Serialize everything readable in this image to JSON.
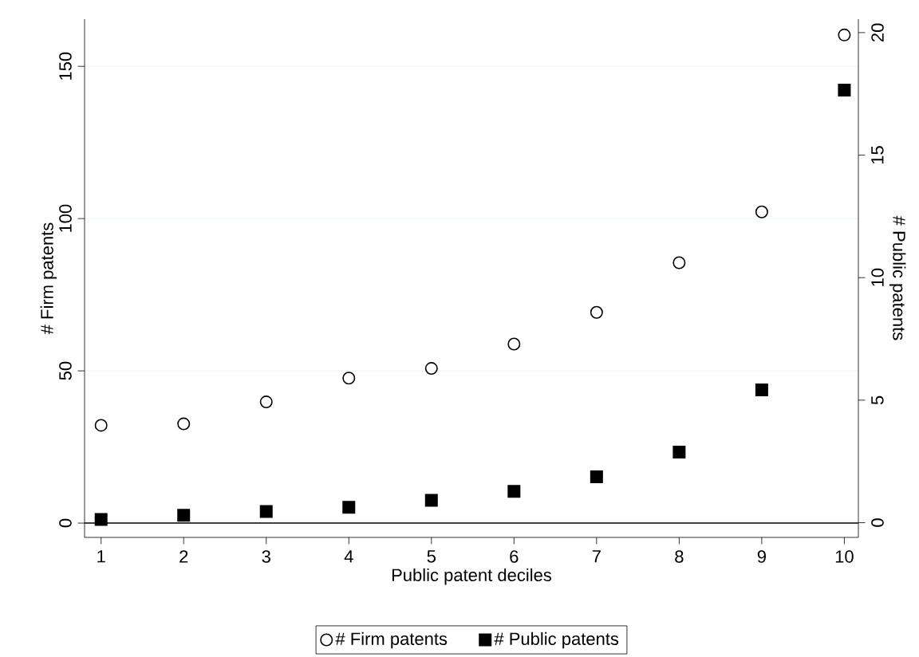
{
  "chart_data": {
    "type": "scatter",
    "xlabel": "Public patent deciles",
    "ylabel": "# Firm patents",
    "y2label": "# Public patents",
    "x": [
      1,
      2,
      3,
      4,
      5,
      6,
      7,
      8,
      9,
      10
    ],
    "xlim": [
      0.8,
      10.17
    ],
    "xticks": [
      1,
      2,
      3,
      4,
      5,
      6,
      7,
      8,
      9,
      10
    ],
    "ylim": [
      -4.7,
      165.5
    ],
    "yticks": [
      0,
      50,
      100,
      150
    ],
    "y2lim": [
      -0.6,
      20.55
    ],
    "y2ticks": [
      0,
      5,
      10,
      15,
      20
    ],
    "grid": "y",
    "legend": "bottom",
    "series": [
      {
        "name": "# Firm patents",
        "color": "#000000",
        "marker": "circle",
        "values": [
          32.1,
          32.6,
          39.8,
          47.6,
          50.8,
          58.8,
          69.2,
          85.5,
          102.2,
          160.3
        ]
      },
      {
        "name": "# Public patents",
        "color": "#000000",
        "marker": "square",
        "axis": "y2",
        "values": [
          0.13,
          0.3,
          0.46,
          0.63,
          0.91,
          1.28,
          1.87,
          2.88,
          5.42,
          17.65
        ]
      }
    ],
    "ref_lines": [
      {
        "axis": "y",
        "value": 0,
        "color": "#000000"
      }
    ]
  }
}
